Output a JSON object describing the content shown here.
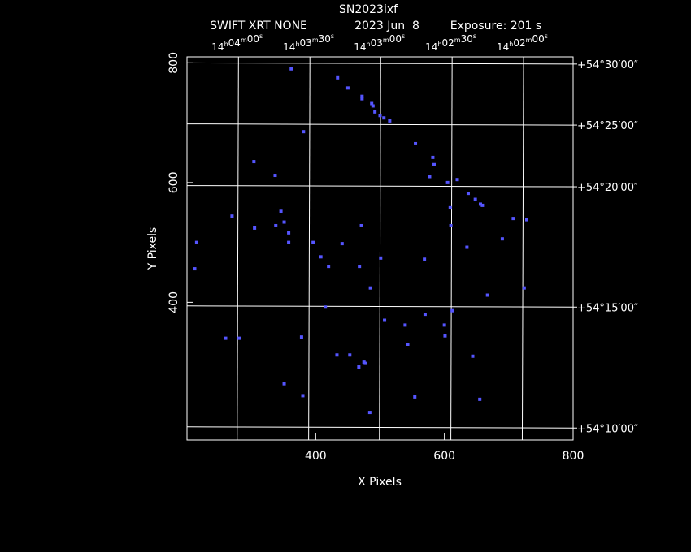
{
  "chart_data": {
    "type": "scatter",
    "title": "SN2023ixf",
    "subtitle": {
      "instrument": "SWIFT XRT NONE",
      "date": "2023 Jun  8",
      "exposure": "Exposure: 201 s"
    },
    "xlabel": "X Pixels",
    "ylabel": "Y Pixels",
    "xlim": [
      200,
      800
    ],
    "ylim": [
      170,
      810
    ],
    "x_ticks": [
      400,
      600,
      800
    ],
    "y_ticks": [
      400,
      600,
      800
    ],
    "x_tick_labels": [
      "400",
      "600",
      "800"
    ],
    "y_tick_labels": [
      "400",
      "600",
      "800"
    ],
    "ra_labels": [
      {
        "h": "14",
        "m": "04",
        "s": "00",
        "x": 278
      },
      {
        "h": "14",
        "m": "03",
        "s": "30",
        "x": 389
      },
      {
        "h": "14",
        "m": "03",
        "s": "00",
        "x": 499
      },
      {
        "h": "14",
        "m": "02",
        "s": "30",
        "x": 610
      },
      {
        "h": "14",
        "m": "02",
        "s": "00",
        "x": 721
      }
    ],
    "dec_labels": [
      {
        "text": "+54°30′00″",
        "y": 798
      },
      {
        "text": "+54°25′00″",
        "y": 696
      },
      {
        "text": "+54°20′00″",
        "y": 593
      },
      {
        "text": "+54°15′00″",
        "y": 392
      },
      {
        "text": "+54°10′00″",
        "y": 190
      }
    ],
    "grid": true,
    "grid_ra_lines": [
      {
        "x_bottom": 278,
        "x_top": 280
      },
      {
        "x_bottom": 389,
        "x_top": 391
      },
      {
        "x_bottom": 499,
        "x_top": 501
      },
      {
        "x_bottom": 610,
        "x_top": 612
      },
      {
        "x_bottom": 721,
        "x_top": 723
      }
    ],
    "grid_dec_lines": [
      {
        "y_left": 800,
        "y_right": 798
      },
      {
        "y_left": 698,
        "y_right": 696
      },
      {
        "y_left": 595,
        "y_right": 593
      },
      {
        "y_left": 394,
        "y_right": 392
      },
      {
        "y_left": 192,
        "y_right": 190
      }
    ],
    "point_color": "#5555ff",
    "points": [
      [
        362,
        790
      ],
      [
        434,
        775
      ],
      [
        450,
        758
      ],
      [
        472,
        744
      ],
      [
        472,
        740
      ],
      [
        487,
        732
      ],
      [
        489,
        728
      ],
      [
        492,
        718
      ],
      [
        500,
        712
      ],
      [
        506,
        708
      ],
      [
        515,
        703
      ],
      [
        381,
        685
      ],
      [
        555,
        665
      ],
      [
        582,
        642
      ],
      [
        584,
        630
      ],
      [
        304,
        635
      ],
      [
        337,
        612
      ],
      [
        577,
        610
      ],
      [
        620,
        605
      ],
      [
        605,
        600
      ],
      [
        637,
        582
      ],
      [
        648,
        572
      ],
      [
        656,
        564
      ],
      [
        659,
        562
      ],
      [
        609,
        558
      ],
      [
        346,
        552
      ],
      [
        270,
        544
      ],
      [
        707,
        540
      ],
      [
        728,
        538
      ],
      [
        351,
        534
      ],
      [
        338,
        528
      ],
      [
        471,
        528
      ],
      [
        610,
        528
      ],
      [
        305,
        524
      ],
      [
        358,
        516
      ],
      [
        215,
        500
      ],
      [
        358,
        500
      ],
      [
        396,
        500
      ],
      [
        441,
        498
      ],
      [
        635,
        492
      ],
      [
        690,
        506
      ],
      [
        408,
        476
      ],
      [
        501,
        474
      ],
      [
        569,
        472
      ],
      [
        420,
        460
      ],
      [
        468,
        460
      ],
      [
        212,
        456
      ],
      [
        485,
        424
      ],
      [
        724,
        424
      ],
      [
        667,
        412
      ],
      [
        415,
        392
      ],
      [
        612,
        386
      ],
      [
        570,
        380
      ],
      [
        507,
        370
      ],
      [
        539,
        362
      ],
      [
        600,
        362
      ],
      [
        260,
        340
      ],
      [
        281,
        340
      ],
      [
        378,
        342
      ],
      [
        601,
        344
      ],
      [
        543,
        330
      ],
      [
        433,
        312
      ],
      [
        453,
        312
      ],
      [
        644,
        310
      ],
      [
        475,
        300
      ],
      [
        477,
        298
      ],
      [
        467,
        292
      ],
      [
        351,
        264
      ],
      [
        380,
        244
      ],
      [
        554,
        242
      ],
      [
        655,
        238
      ],
      [
        484,
        216
      ]
    ]
  }
}
